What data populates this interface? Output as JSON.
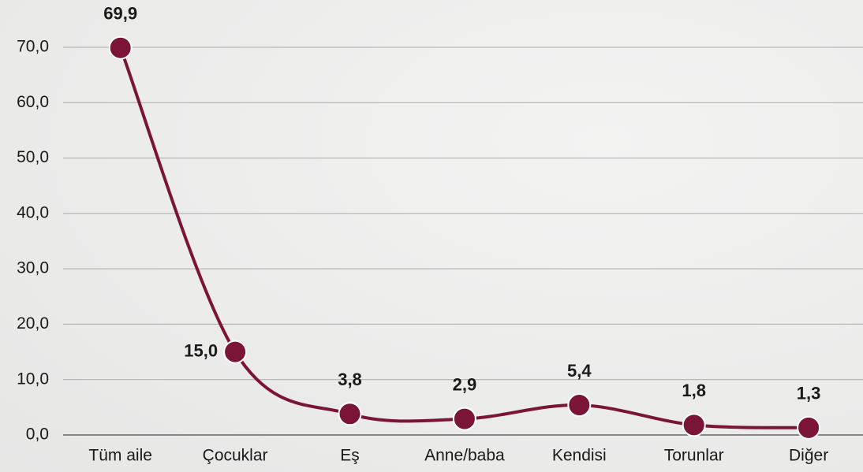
{
  "chart_data": {
    "type": "line",
    "categories": [
      "Tüm aile",
      "Çocuklar",
      "Eş",
      "Anne/baba",
      "Kendisi",
      "Torunlar",
      "Diğer"
    ],
    "series": [
      {
        "color": "#7a1538",
        "values": [
          69.9,
          15.0,
          3.8,
          2.9,
          5.4,
          1.8,
          1.3
        ],
        "value_labels": [
          "69,9",
          "15,0",
          "3,8",
          "2,9",
          "5,4",
          "1,8",
          "1,3"
        ]
      }
    ],
    "ylim": [
      0,
      70
    ],
    "yticks": [
      {
        "value": 0,
        "label": "0,0"
      },
      {
        "value": 10,
        "label": "10,0"
      },
      {
        "value": 20,
        "label": "20,0"
      },
      {
        "value": 30,
        "label": "30,0"
      },
      {
        "value": 40,
        "label": "40,0"
      },
      {
        "value": 50,
        "label": "50,0"
      },
      {
        "value": 60,
        "label": "60,0"
      },
      {
        "value": 70,
        "label": "70,0"
      }
    ],
    "grid": true
  }
}
